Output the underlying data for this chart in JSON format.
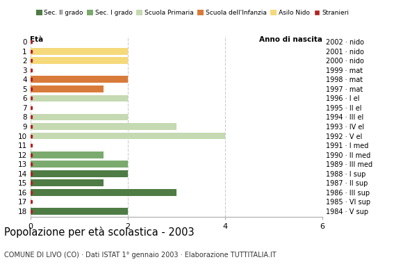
{
  "title": "Popolazione per età scolastica - 2003",
  "subtitle": "COMUNE DI LIVO (CO) · Dati ISTAT 1° gennaio 2003 · Elaborazione TUTTITALIA.IT",
  "ylabel_left": "Età",
  "ylabel_right": "Anno di nascita",
  "ages": [
    18,
    17,
    16,
    15,
    14,
    13,
    12,
    11,
    10,
    9,
    8,
    7,
    6,
    5,
    4,
    3,
    2,
    1,
    0
  ],
  "years": [
    "1984 · V sup",
    "1985 · VI sup",
    "1986 · III sup",
    "1987 · II sup",
    "1988 · I sup",
    "1989 · III med",
    "1990 · II med",
    "1991 · I med",
    "1992 · V el",
    "1993 · IV el",
    "1994 · III el",
    "1995 · II el",
    "1996 · I el",
    "1997 · mat",
    "1998 · mat",
    "1999 · mat",
    "2000 · nido",
    "2001 · nido",
    "2002 · nido"
  ],
  "bars": [
    {
      "age": 18,
      "value": 2,
      "color": "#4e7c44"
    },
    {
      "age": 17,
      "value": 0,
      "color": "#4e7c44"
    },
    {
      "age": 16,
      "value": 3,
      "color": "#4e7c44"
    },
    {
      "age": 15,
      "value": 1.5,
      "color": "#4e7c44"
    },
    {
      "age": 14,
      "value": 2,
      "color": "#4e7c44"
    },
    {
      "age": 13,
      "value": 2,
      "color": "#7aaa6e"
    },
    {
      "age": 12,
      "value": 1.5,
      "color": "#7aaa6e"
    },
    {
      "age": 11,
      "value": 0,
      "color": "#7aaa6e"
    },
    {
      "age": 10,
      "value": 4,
      "color": "#c5d9b2"
    },
    {
      "age": 9,
      "value": 3,
      "color": "#c5d9b2"
    },
    {
      "age": 8,
      "value": 2,
      "color": "#c5d9b2"
    },
    {
      "age": 7,
      "value": 0,
      "color": "#c5d9b2"
    },
    {
      "age": 6,
      "value": 2,
      "color": "#c5d9b2"
    },
    {
      "age": 5,
      "value": 1.5,
      "color": "#d87b3a"
    },
    {
      "age": 4,
      "value": 2,
      "color": "#d87b3a"
    },
    {
      "age": 3,
      "value": 0,
      "color": "#d87b3a"
    },
    {
      "age": 2,
      "value": 2,
      "color": "#f5d97a"
    },
    {
      "age": 1,
      "value": 2,
      "color": "#f5d97a"
    },
    {
      "age": 0,
      "value": 0,
      "color": "#f5d97a"
    }
  ],
  "stranieri_color": "#b22222",
  "xlim": [
    0,
    6
  ],
  "xticks": [
    0,
    2,
    4,
    6
  ],
  "background_color": "#ffffff",
  "grid_color": "#cccccc",
  "legend_items": [
    {
      "label": "Sec. II grado",
      "color": "#4e7c44",
      "type": "patch"
    },
    {
      "label": "Sec. I grado",
      "color": "#7aaa6e",
      "type": "patch"
    },
    {
      "label": "Scuola Primaria",
      "color": "#c5d9b2",
      "type": "patch"
    },
    {
      "label": "Scuola dell'Infanzia",
      "color": "#d87b3a",
      "type": "patch"
    },
    {
      "label": "Asilo Nido",
      "color": "#f5d97a",
      "type": "patch"
    },
    {
      "label": "Stranieri",
      "color": "#b22222",
      "type": "square"
    }
  ]
}
